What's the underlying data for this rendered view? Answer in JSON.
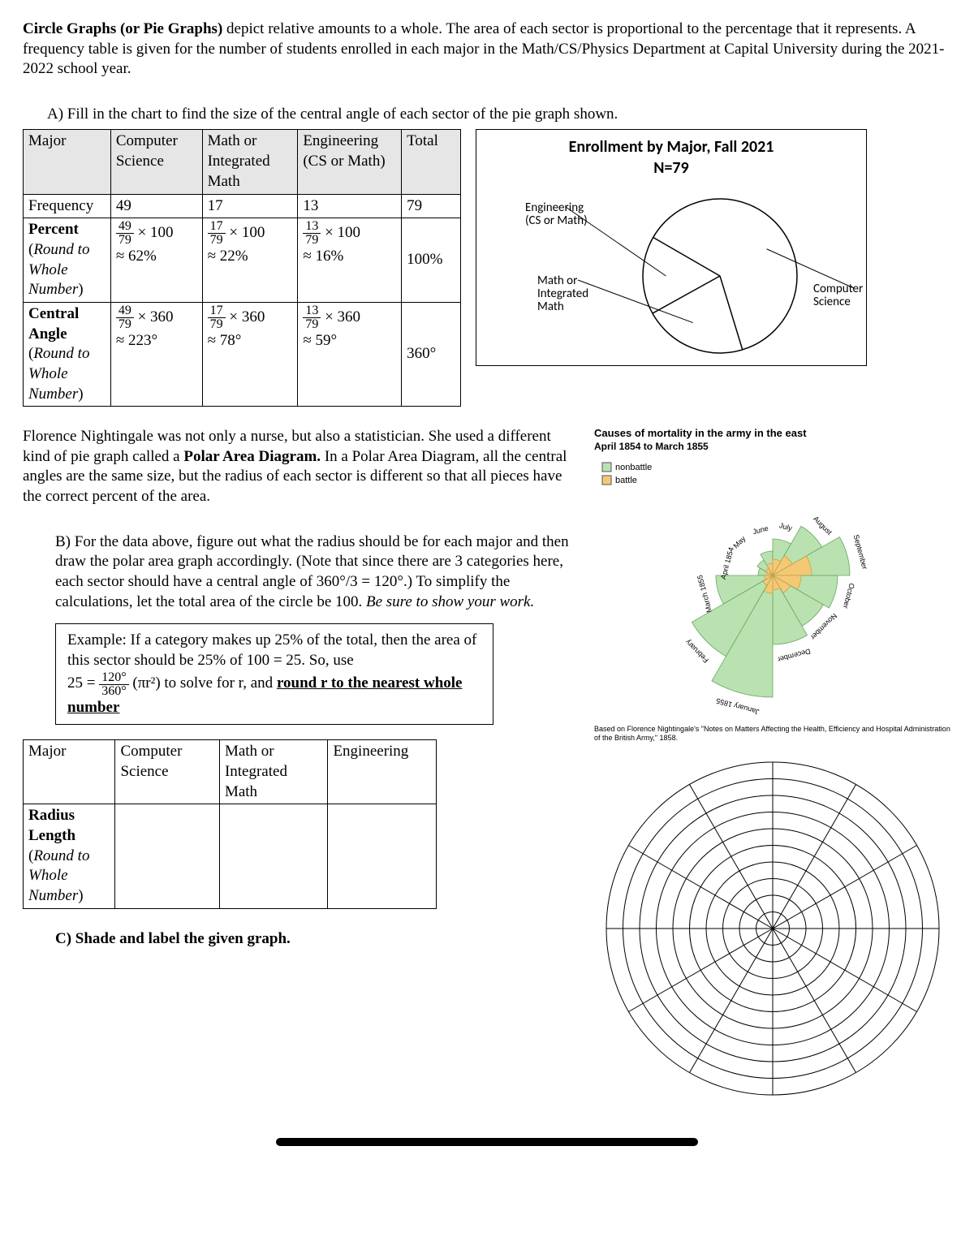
{
  "intro": {
    "title_phrase": "Circle Graphs (or Pie Graphs)",
    "text_after": " depict relative amounts to a whole.  The area of each sector is proportional to the percentage that it represents.  A frequency table is given for the number of students enrolled in each major in the Math/CS/Physics Department at Capital University during the 2021-2022 school year."
  },
  "partA": {
    "prompt": "A)  Fill in the chart to find the size of the central angle of each sector of the pie graph shown.",
    "table": {
      "headers": [
        "Major",
        "Computer Science",
        "Math or Integrated Math",
        "Engineering (CS or Math)",
        "Total"
      ],
      "rows": [
        {
          "label": "Frequency",
          "cells": [
            "49",
            "17",
            "13",
            "79"
          ],
          "label_style": "plain"
        },
        {
          "label_html": "<span class='bold'>Percent</span> (<span class='italic'>Round to Whole Number</span>)",
          "cells_hand": [
            "49/79 × 100<br>≈ 62%",
            "17/79 × 100<br>≈ 22%",
            "13/79 × 100<br>≈ 16%",
            "100%"
          ]
        },
        {
          "label_html": "<span class='bold'>Central Angle</span> (<span class='italic'>Round to Whole Number</span>)",
          "cells_hand": [
            "49/79 × 360<br>≈ 223°",
            "17/79 × 360<br>≈ 78°",
            "13/79 × 360<br>≈ 59°",
            "360°"
          ]
        }
      ]
    }
  },
  "pie_chart": {
    "title": "Enrollment by Major, Fall 2021",
    "subtitle": "N=79",
    "labels": {
      "eng": "Engineering\n(CS or Math)",
      "math": "Math or\nIntegrated\nMath",
      "cs": "Computer\nScience"
    },
    "slices": [
      {
        "label": "Computer Science",
        "percent": 62,
        "start_deg": 300,
        "sweep_deg": 223
      },
      {
        "label": "Math or Integrated Math",
        "percent": 22,
        "start_deg": 163,
        "sweep_deg": 78
      },
      {
        "label": "Engineering (CS or Math)",
        "percent": 16,
        "start_deg": 241,
        "sweep_deg": 59
      }
    ],
    "colors": {
      "fill": "#ffffff",
      "stroke": "#000000"
    }
  },
  "nightingale_para": {
    "text_before": "Florence Nightingale was not only a nurse, but also a statistician.  She used a different kind of pie graph called a ",
    "bold": "Polar Area Diagram.",
    "text_after": "  In a Polar Area Diagram, all the central angles are the same size, but the radius of each sector is different so that all pieces have the correct percent of the area."
  },
  "partB": {
    "prompt_before": "B)  For the data above, figure out what the radius should be for each major and then draw the polar area graph accordingly.  (Note that since there are 3 categories here, each sector should have a central angle of 360°/3 = 120°.) To simplify the calculations, let the total area of the circle be 100. ",
    "prompt_italic": "Be sure to show your work."
  },
  "example_box": {
    "line1": "Example:  If a category makes up 25% of the total, then the area of this sector should be 25% of 100 = 25.  So, use",
    "formula_lhs": "25 = ",
    "formula_frac_num": "120°",
    "formula_frac_den": "360°",
    "formula_rhs": " (πr²) to solve for r, and ",
    "bold_underline": "round r to the nearest whole number"
  },
  "polar_diagram": {
    "title": "Causes of mortality in the army in the east",
    "subtitle": "April 1854 to March 1855",
    "legend": [
      {
        "label": "nonbattle",
        "color": "#b9e2b0"
      },
      {
        "label": "battle",
        "color": "#f4c976"
      }
    ],
    "months": [
      "April 1854",
      "May",
      "June",
      "July",
      "August",
      "September",
      "October",
      "November",
      "December",
      "January 1855",
      "February",
      "March 1855"
    ],
    "caption": "Based on Florence Nightingale's \"Notes on Matters Affecting the Health, Efficiency and Hospital Administration of the British Army,\" 1858.",
    "colors": {
      "nonbattle": "#b9e2b0",
      "battle": "#f4c976",
      "stroke": "#6aa560"
    }
  },
  "radius_table": {
    "headers": [
      "Major",
      "Computer Science",
      "Math or Integrated Math",
      "Engineering"
    ],
    "row_label_html": "<span class='bold'>Radius Length</span> (<span class='italic'>Round to Whole Number</span>)",
    "cells": [
      "",
      "",
      ""
    ]
  },
  "partC": {
    "prompt": "C)  Shade and label the given graph."
  },
  "blank_polar": {
    "rings": 10,
    "spokes": 12,
    "stroke": "#000000"
  }
}
